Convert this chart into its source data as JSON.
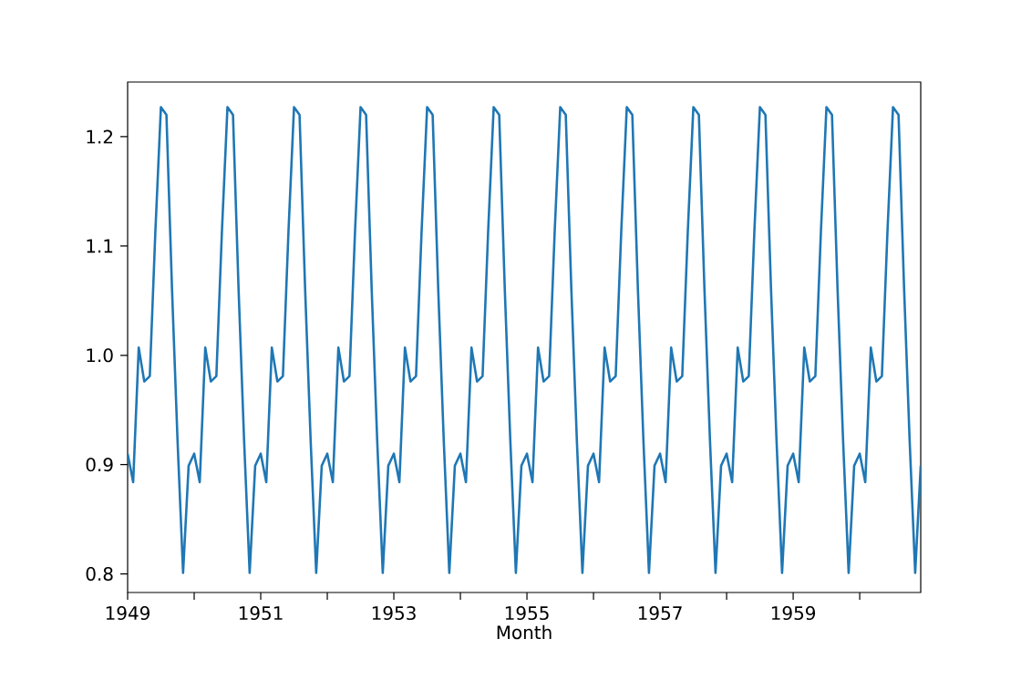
{
  "chart_data": {
    "type": "line",
    "xlabel": "Month",
    "x": [
      "1949-01",
      "1949-02",
      "1949-03",
      "1949-04",
      "1949-05",
      "1949-06",
      "1949-07",
      "1949-08",
      "1949-09",
      "1949-10",
      "1949-11",
      "1949-12",
      "1950-01",
      "1950-02",
      "1950-03",
      "1950-04",
      "1950-05",
      "1950-06",
      "1950-07",
      "1950-08",
      "1950-09",
      "1950-10",
      "1950-11",
      "1950-12",
      "1951-01",
      "1951-02",
      "1951-03",
      "1951-04",
      "1951-05",
      "1951-06",
      "1951-07",
      "1951-08",
      "1951-09",
      "1951-10",
      "1951-11",
      "1951-12",
      "1952-01",
      "1952-02",
      "1952-03",
      "1952-04",
      "1952-05",
      "1952-06",
      "1952-07",
      "1952-08",
      "1952-09",
      "1952-10",
      "1952-11",
      "1952-12",
      "1953-01",
      "1953-02",
      "1953-03",
      "1953-04",
      "1953-05",
      "1953-06",
      "1953-07",
      "1953-08",
      "1953-09",
      "1953-10",
      "1953-11",
      "1953-12",
      "1954-01",
      "1954-02",
      "1954-03",
      "1954-04",
      "1954-05",
      "1954-06",
      "1954-07",
      "1954-08",
      "1954-09",
      "1954-10",
      "1954-11",
      "1954-12",
      "1955-01",
      "1955-02",
      "1955-03",
      "1955-04",
      "1955-05",
      "1955-06",
      "1955-07",
      "1955-08",
      "1955-09",
      "1955-10",
      "1955-11",
      "1955-12",
      "1956-01",
      "1956-02",
      "1956-03",
      "1956-04",
      "1956-05",
      "1956-06",
      "1956-07",
      "1956-08",
      "1956-09",
      "1956-10",
      "1956-11",
      "1956-12",
      "1957-01",
      "1957-02",
      "1957-03",
      "1957-04",
      "1957-05",
      "1957-06",
      "1957-07",
      "1957-08",
      "1957-09",
      "1957-10",
      "1957-11",
      "1957-12",
      "1958-01",
      "1958-02",
      "1958-03",
      "1958-04",
      "1958-05",
      "1958-06",
      "1958-07",
      "1958-08",
      "1958-09",
      "1958-10",
      "1958-11",
      "1958-12",
      "1959-01",
      "1959-02",
      "1959-03",
      "1959-04",
      "1959-05",
      "1959-06",
      "1959-07",
      "1959-08",
      "1959-09",
      "1959-10",
      "1959-11",
      "1959-12",
      "1960-01",
      "1960-02",
      "1960-03",
      "1960-04",
      "1960-05",
      "1960-06",
      "1960-07",
      "1960-08",
      "1960-09",
      "1960-10",
      "1960-11",
      "1960-12"
    ],
    "series": [
      {
        "color": "#1f77b4",
        "values": [
          0.91,
          0.884,
          1.007,
          0.976,
          0.981,
          1.113,
          1.227,
          1.22,
          1.061,
          0.922,
          0.801,
          0.899,
          0.91,
          0.884,
          1.007,
          0.976,
          0.981,
          1.113,
          1.227,
          1.22,
          1.061,
          0.922,
          0.801,
          0.899,
          0.91,
          0.884,
          1.007,
          0.976,
          0.981,
          1.113,
          1.227,
          1.22,
          1.061,
          0.922,
          0.801,
          0.899,
          0.91,
          0.884,
          1.007,
          0.976,
          0.981,
          1.113,
          1.227,
          1.22,
          1.061,
          0.922,
          0.801,
          0.899,
          0.91,
          0.884,
          1.007,
          0.976,
          0.981,
          1.113,
          1.227,
          1.22,
          1.061,
          0.922,
          0.801,
          0.899,
          0.91,
          0.884,
          1.007,
          0.976,
          0.981,
          1.113,
          1.227,
          1.22,
          1.061,
          0.922,
          0.801,
          0.899,
          0.91,
          0.884,
          1.007,
          0.976,
          0.981,
          1.113,
          1.227,
          1.22,
          1.061,
          0.922,
          0.801,
          0.899,
          0.91,
          0.884,
          1.007,
          0.976,
          0.981,
          1.113,
          1.227,
          1.22,
          1.061,
          0.922,
          0.801,
          0.899,
          0.91,
          0.884,
          1.007,
          0.976,
          0.981,
          1.113,
          1.227,
          1.22,
          1.061,
          0.922,
          0.801,
          0.899,
          0.91,
          0.884,
          1.007,
          0.976,
          0.981,
          1.113,
          1.227,
          1.22,
          1.061,
          0.922,
          0.801,
          0.899,
          0.91,
          0.884,
          1.007,
          0.976,
          0.981,
          1.113,
          1.227,
          1.22,
          1.061,
          0.922,
          0.801,
          0.899,
          0.91,
          0.884,
          1.007,
          0.976,
          0.981,
          1.113,
          1.227,
          1.22,
          1.061,
          0.922,
          0.801,
          0.899
        ]
      }
    ],
    "xlim": [
      "1949-01",
      "1960-12"
    ],
    "ylim": [
      0.783,
      1.25
    ],
    "xticks": [
      {
        "value": "1949",
        "label": "1949"
      },
      {
        "value": "1950",
        "label": null
      },
      {
        "value": "1951",
        "label": "1951"
      },
      {
        "value": "1952",
        "label": null
      },
      {
        "value": "1953",
        "label": "1953"
      },
      {
        "value": "1954",
        "label": null
      },
      {
        "value": "1955",
        "label": "1955"
      },
      {
        "value": "1956",
        "label": null
      },
      {
        "value": "1957",
        "label": "1957"
      },
      {
        "value": "1958",
        "label": null
      },
      {
        "value": "1959",
        "label": "1959"
      },
      {
        "value": "1960",
        "label": null
      }
    ],
    "yticks": [
      {
        "value": 0.8,
        "label": "0.8"
      },
      {
        "value": 0.9,
        "label": "0.9"
      },
      {
        "value": 1.0,
        "label": "1.0"
      },
      {
        "value": 1.1,
        "label": "1.1"
      },
      {
        "value": 1.2,
        "label": "1.2"
      }
    ]
  }
}
